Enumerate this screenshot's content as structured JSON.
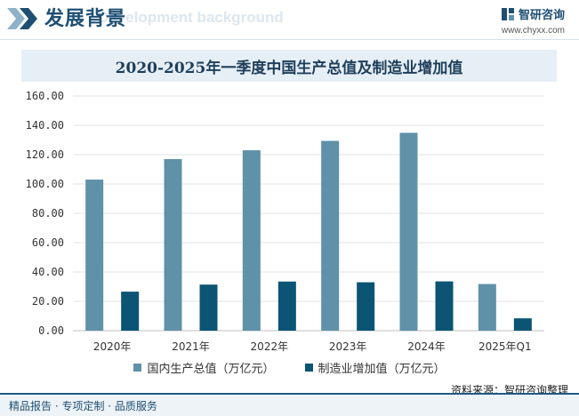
{
  "header": {
    "title": "发展背景",
    "subtitle": "Development background",
    "brand_name": "智研咨询",
    "brand_url": "www.chyxx.com",
    "brand_icon": "chyxx-logo-icon",
    "accent_color": "#1e4f73"
  },
  "source": "资料来源：智研咨询整理",
  "footer": "精品报告 · 专项定制 · 品质服务",
  "chart_data": {
    "type": "bar",
    "title": "2020-2025年一季度中国生产总值及制造业增加值",
    "categories": [
      "2020年",
      "2021年",
      "2022年",
      "2023年",
      "2024年",
      "2025年Q1"
    ],
    "series": [
      {
        "name": "国内生产总值（万亿元）",
        "color": "#5f91a9",
        "values": [
          103.0,
          117.0,
          123.0,
          129.4,
          134.9,
          31.8
        ]
      },
      {
        "name": "制造业增加值（万亿元）",
        "color": "#0b5474",
        "values": [
          26.6,
          31.4,
          33.5,
          33.0,
          33.6,
          8.4
        ]
      }
    ],
    "yticks": [
      "0.00",
      "20.00",
      "40.00",
      "60.00",
      "80.00",
      "100.00",
      "120.00",
      "140.00",
      "160.00"
    ],
    "ylim": [
      0,
      160
    ],
    "grid": true,
    "legend": "bottom"
  }
}
